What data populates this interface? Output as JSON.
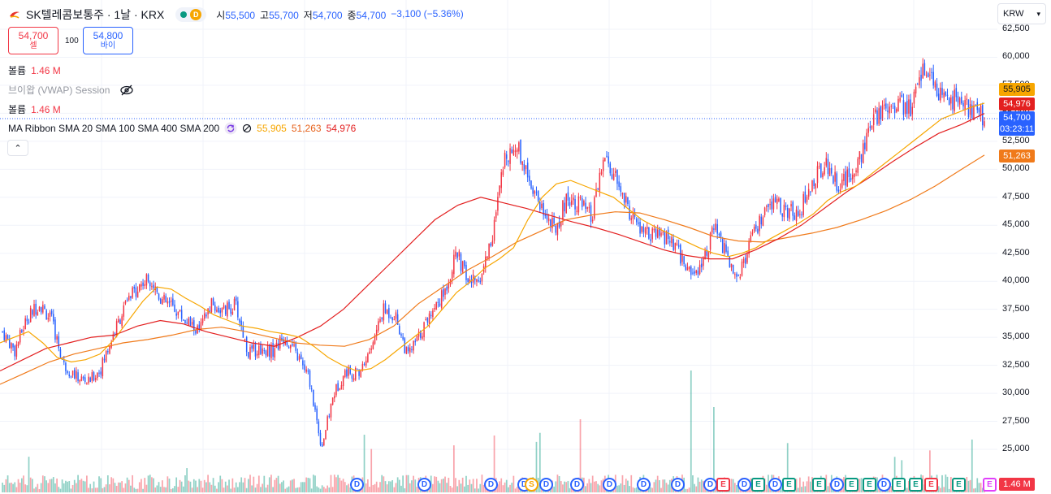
{
  "symbol": {
    "title": "SK텔레콤보통주 · 1날 · KRX",
    "status_badge": "D",
    "ohlc": [
      {
        "label": "시",
        "value": "55,500"
      },
      {
        "label": "고",
        "value": "55,700"
      },
      {
        "label": "저",
        "value": "54,700"
      },
      {
        "label": "종",
        "value": "54,700"
      }
    ],
    "change": "−3,100 (−5.36%)"
  },
  "trade": {
    "sell_price": "54,700",
    "sell_label": "셀",
    "quantity": "100",
    "buy_price": "54,800",
    "buy_label": "바이"
  },
  "indicators": {
    "volume_label_1": "볼륨",
    "volume_value_1": "1.46 M",
    "vwap_label": "브이왑 (VWAP) Session",
    "volume_label_2": "볼륨",
    "volume_value_2": "1.46 M",
    "ma_ribbon_label": "MA Ribbon SMA 20 SMA 100 SMA 400 SMA 200",
    "ma_values": [
      "55,905",
      "51,263",
      "54,976"
    ]
  },
  "currency_selector": {
    "value": "KRW"
  },
  "price_axis": {
    "ticks": [
      "62,500",
      "60,000",
      "57,500",
      "55,000",
      "52,500",
      "50,000",
      "47,500",
      "45,000",
      "42,500",
      "40,000",
      "37,500",
      "35,000",
      "32,500",
      "30,000",
      "27,500",
      "25,000"
    ],
    "tags": {
      "sma20": "55,905",
      "sma100": "54,976",
      "last_price": "54,700",
      "countdown": "03:23:11",
      "sma200": "51,263",
      "volume": "1.46 M"
    }
  },
  "events": [
    "D",
    "D",
    "D",
    "D",
    "S",
    "D",
    "D",
    "D",
    "D",
    "D",
    "D",
    "E",
    "D",
    "E",
    "D",
    "E",
    "E",
    "D",
    "E",
    "E",
    "D",
    "E",
    "E",
    "E",
    "E",
    "E"
  ],
  "colors": {
    "up": "#f23645",
    "down": "#2962ff",
    "sma20": "#f7a600",
    "sma100": "#e32020",
    "sma200": "#f07a1a",
    "earnings_beat": "#089981",
    "earnings_miss": "#f23645",
    "earnings_future": "#e040fb"
  },
  "chart_data": {
    "type": "candlestick",
    "ylim": [
      22500,
      62500
    ],
    "close_path": [
      35500,
      33800,
      36800,
      38000,
      36500,
      32500,
      31500,
      31000,
      32200,
      35200,
      37800,
      39500,
      40300,
      38300,
      37600,
      36400,
      35500,
      37900,
      37300,
      37900,
      33600,
      34000,
      33800,
      35000,
      33400,
      31300,
      25200,
      30000,
      32000,
      31700,
      33900,
      37400,
      37000,
      33300,
      35200,
      37500,
      39000,
      42500,
      39800,
      40500,
      44500,
      51500,
      52000,
      49000,
      46500,
      44500,
      47500,
      47000,
      45500,
      51000,
      49000,
      46400,
      44500,
      44000,
      44000,
      42700,
      40700,
      41600,
      44800,
      42200,
      40500,
      43600,
      45800,
      47100,
      46000,
      46500,
      48700,
      50700,
      48800,
      49200,
      51500,
      54300,
      55800,
      56000,
      55200,
      59500,
      57000,
      55700,
      56800,
      55000,
      54700
    ],
    "sma20": [
      34500,
      35000,
      35500,
      34500,
      33200,
      32800,
      33000,
      33500,
      34800,
      36500,
      38200,
      39500,
      39300,
      38500,
      37800,
      37000,
      36500,
      36000,
      35800,
      35500,
      35300,
      35000,
      34200,
      33200,
      32500,
      32000,
      32200,
      33000,
      34000,
      35000,
      36000,
      37500,
      39000,
      40000,
      41200,
      42000,
      43000,
      45500,
      47500,
      48700,
      49000,
      48500,
      48000,
      47500,
      46500,
      45500,
      44800,
      44200,
      43600,
      43000,
      42500,
      42200,
      42500,
      43000,
      43800,
      44500,
      45200,
      46000,
      47200,
      48000,
      48500,
      49500,
      50500,
      51500,
      52500,
      53500,
      54500,
      55000,
      55500,
      55905
    ],
    "sma100": [
      32000,
      33000,
      34000,
      34500,
      35000,
      35200,
      36000,
      36500,
      36200,
      35500,
      35000,
      34500,
      34200,
      35000,
      36000,
      37500,
      39500,
      41500,
      43500,
      45500,
      46800,
      47500,
      47000,
      46500,
      45900,
      45300,
      44800,
      44200,
      43500,
      42800,
      42300,
      42000,
      42000,
      42800,
      43800,
      45000,
      46500,
      48000,
      49300,
      50700,
      52000,
      53200,
      54000,
      54976
    ],
    "sma200": [
      30800,
      31800,
      32800,
      33500,
      34000,
      34500,
      34800,
      35200,
      35700,
      35900,
      35500,
      35000,
      34500,
      34300,
      34200,
      34800,
      36000,
      38000,
      39500,
      41000,
      42200,
      43500,
      44500,
      45500,
      45900,
      46200,
      46100,
      45500,
      44800,
      44000,
      43600,
      43500,
      43900,
      44300,
      44800,
      45500,
      46300,
      47300,
      48500,
      49900,
      51263
    ]
  }
}
